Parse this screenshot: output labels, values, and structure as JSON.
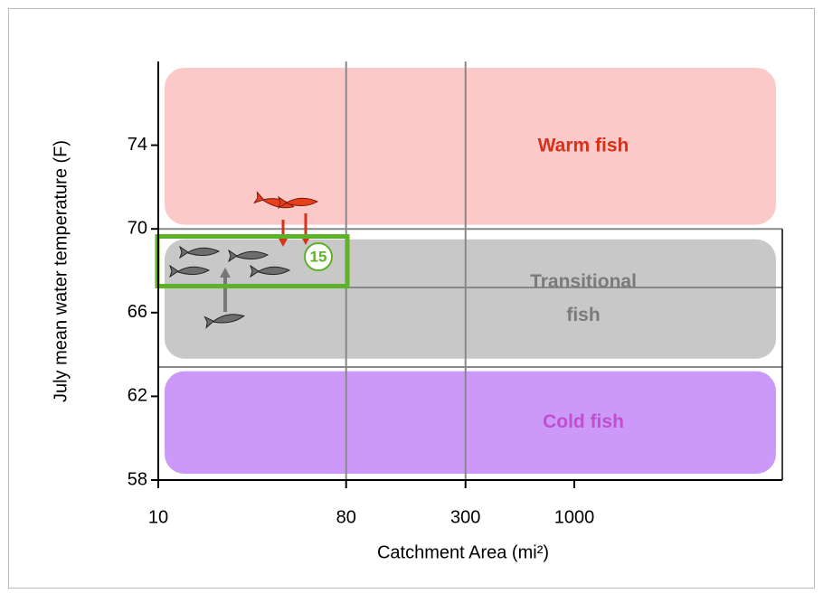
{
  "chart_data": {
    "type": "zones",
    "xlabel": "Catchment Area (mi²)",
    "ylabel": "July mean water temperature (F)",
    "xscale": "log",
    "xlim": [
      10,
      10000
    ],
    "xticks": [
      10,
      80,
      300,
      1000
    ],
    "ylim": [
      58,
      78
    ],
    "yticks": [
      58,
      62,
      66,
      70,
      74
    ],
    "vlines": [
      80,
      300
    ],
    "hlines": [
      70,
      67.2,
      63.4
    ],
    "zones": [
      {
        "label": [
          "Warm fish"
        ],
        "ylim": [
          70.2,
          77.7
        ],
        "color": "#fcc9c9",
        "label_color": "#d63119"
      },
      {
        "label": [
          "Transitional",
          "fish"
        ],
        "ylim": [
          63.8,
          69.5
        ],
        "color": "#c8c8c8",
        "label_color": "#7a7a7a"
      },
      {
        "label": [
          "Cold fish"
        ],
        "ylim": [
          58.3,
          63.2
        ],
        "color": "#cc99f8",
        "label_color": "#c04fd0"
      }
    ],
    "annotation": "15"
  }
}
